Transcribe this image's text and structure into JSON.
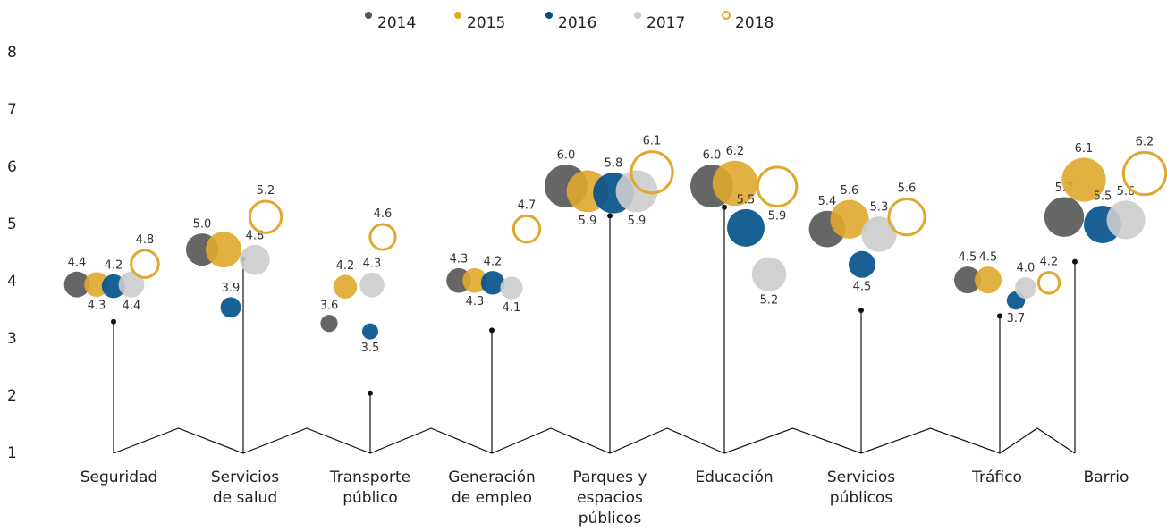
{
  "chart_data": {
    "type": "bubble",
    "categories": [
      "Seguridad",
      "Servicios de salud",
      "Transporte público",
      "Generación de empleo",
      "Parques y espacios públicos",
      "Educación",
      "Servicios públicos",
      "Tráfico",
      "Barrio"
    ],
    "ylim": [
      1,
      8
    ],
    "yticks": [
      1,
      2,
      3,
      4,
      5,
      6,
      7,
      8
    ],
    "stem": [
      3.3,
      4.4,
      2.05,
      3.15,
      5.15,
      5.3,
      3.5,
      3.4,
      4.35
    ],
    "series": [
      {
        "name": "2014",
        "color": "#555555",
        "fill": true,
        "y": [
          3.95,
          4.56,
          3.27,
          4.02,
          5.67,
          5.67,
          4.92,
          4.03,
          5.13
        ],
        "values": [
          4.4,
          5.0,
          3.6,
          4.3,
          6.0,
          6.0,
          5.4,
          4.5,
          5.7
        ],
        "value_labels": [
          "4.4",
          "5.0",
          "3.6",
          "4.3",
          "6.0",
          "6.0",
          "5.4",
          "4.5",
          "5.7"
        ]
      },
      {
        "name": "2015",
        "color": "#e0a82e",
        "fill": true,
        "y": [
          3.95,
          4.56,
          3.91,
          4.02,
          5.58,
          5.72,
          5.09,
          4.03,
          5.78
        ],
        "values": [
          4.3,
          null,
          4.2,
          4.3,
          5.9,
          6.2,
          5.6,
          4.5,
          6.1
        ],
        "value_labels": [
          "4.3",
          null,
          "4.2",
          "4.3",
          "5.9",
          "6.2",
          "5.6",
          "4.5",
          "6.1"
        ]
      },
      {
        "name": "2016",
        "color": "#00508a",
        "fill": true,
        "y": [
          3.92,
          3.55,
          3.13,
          3.98,
          5.55,
          4.94,
          4.3,
          3.67,
          5.0
        ],
        "values": [
          4.2,
          3.9,
          3.5,
          4.2,
          5.8,
          5.5,
          4.5,
          3.7,
          5.5
        ],
        "value_labels": [
          "4.2",
          "3.9",
          "3.5",
          "4.2",
          "5.8",
          "5.5",
          "4.5",
          "3.7",
          "5.5"
        ]
      },
      {
        "name": "2017",
        "color": "#cccccc",
        "fill": true,
        "y": [
          3.95,
          4.38,
          3.94,
          3.89,
          5.58,
          4.13,
          4.83,
          3.89,
          5.08
        ],
        "values": [
          4.4,
          4.8,
          4.3,
          4.1,
          5.9,
          5.2,
          5.3,
          4.0,
          5.6
        ],
        "value_labels": [
          "4.4",
          "4.8",
          "4.3",
          "4.1",
          "5.9",
          "5.2",
          "5.3",
          "4.0",
          "5.6"
        ]
      },
      {
        "name": "2018",
        "color": "#e0a82e",
        "fill": false,
        "y": [
          4.31,
          5.13,
          4.78,
          4.92,
          5.91,
          5.66,
          5.13,
          3.98,
          5.89
        ],
        "values": [
          4.8,
          5.2,
          4.6,
          4.7,
          6.1,
          5.9,
          5.6,
          4.2,
          6.2
        ],
        "value_labels": [
          "4.8",
          "5.2",
          "4.6",
          "4.7",
          "6.1",
          "5.9",
          "5.6",
          "4.2",
          "6.2"
        ]
      }
    ]
  }
}
